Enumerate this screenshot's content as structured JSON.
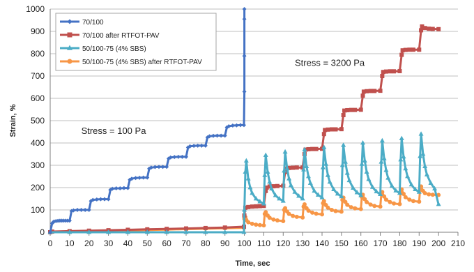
{
  "chart_data": {
    "type": "line",
    "xlabel": "Time, sec",
    "ylabel": "Strain, %",
    "xlim": [
      0,
      210
    ],
    "ylim": [
      0,
      1000
    ],
    "xticks": [
      0,
      10,
      20,
      30,
      40,
      50,
      60,
      70,
      80,
      90,
      100,
      110,
      120,
      130,
      140,
      150,
      160,
      170,
      180,
      190,
      200,
      210
    ],
    "yticks": [
      0,
      100,
      200,
      300,
      400,
      500,
      600,
      700,
      800,
      900,
      1000
    ],
    "grid": "horizontal",
    "legend_position": "top-left",
    "annotations": [
      {
        "text": "Stress = 100 Pa",
        "x": 16,
        "y": 440
      },
      {
        "text": "Stress = 3200 Pa",
        "x": 126,
        "y": 745
      }
    ],
    "series": [
      {
        "name": "70/100",
        "color": "#4472c4",
        "marker": "diamond",
        "points": [
          [
            0,
            0
          ],
          [
            1,
            40
          ],
          [
            1.5,
            45
          ],
          [
            2,
            48
          ],
          [
            3,
            50
          ],
          [
            4,
            51
          ],
          [
            5,
            52
          ],
          [
            6,
            52
          ],
          [
            7,
            52
          ],
          [
            8,
            52
          ],
          [
            9,
            52
          ],
          [
            10,
            52
          ],
          [
            11,
            95
          ],
          [
            12,
            98
          ],
          [
            14,
            100
          ],
          [
            16,
            100
          ],
          [
            18,
            100
          ],
          [
            20,
            100
          ],
          [
            21,
            140
          ],
          [
            22,
            145
          ],
          [
            24,
            147
          ],
          [
            26,
            148
          ],
          [
            28,
            148
          ],
          [
            30,
            148
          ],
          [
            31,
            190
          ],
          [
            32,
            195
          ],
          [
            34,
            197
          ],
          [
            36,
            197
          ],
          [
            38,
            198
          ],
          [
            40,
            198
          ],
          [
            41,
            235
          ],
          [
            42,
            240
          ],
          [
            44,
            243
          ],
          [
            46,
            244
          ],
          [
            48,
            245
          ],
          [
            50,
            245
          ],
          [
            51,
            285
          ],
          [
            52,
            290
          ],
          [
            54,
            292
          ],
          [
            56,
            293
          ],
          [
            58,
            293
          ],
          [
            60,
            293
          ],
          [
            61,
            330
          ],
          [
            62,
            335
          ],
          [
            64,
            337
          ],
          [
            66,
            338
          ],
          [
            68,
            338
          ],
          [
            70,
            338
          ],
          [
            71,
            380
          ],
          [
            72,
            385
          ],
          [
            74,
            387
          ],
          [
            76,
            388
          ],
          [
            78,
            388
          ],
          [
            80,
            388
          ],
          [
            81,
            425
          ],
          [
            82,
            430
          ],
          [
            84,
            432
          ],
          [
            86,
            433
          ],
          [
            88,
            433
          ],
          [
            90,
            433
          ],
          [
            91,
            470
          ],
          [
            92,
            475
          ],
          [
            94,
            478
          ],
          [
            96,
            479
          ],
          [
            98,
            480
          ],
          [
            99.8,
            480
          ],
          [
            100,
            630
          ],
          [
            100,
            790
          ],
          [
            100,
            955
          ],
          [
            100,
            1000
          ]
        ]
      },
      {
        "name": "70/100 after RTFOT-PAV",
        "color": "#c0504d",
        "marker": "square",
        "points": [
          [
            0,
            0
          ],
          [
            1,
            3
          ],
          [
            10,
            5
          ],
          [
            20,
            7
          ],
          [
            30,
            9
          ],
          [
            40,
            11
          ],
          [
            50,
            13
          ],
          [
            60,
            15
          ],
          [
            70,
            17
          ],
          [
            80,
            19
          ],
          [
            90,
            21
          ],
          [
            99.8,
            25
          ],
          [
            100,
            75
          ],
          [
            100.5,
            110
          ],
          [
            102,
            113
          ],
          [
            104,
            115
          ],
          [
            106,
            116
          ],
          [
            108,
            117
          ],
          [
            110,
            118
          ],
          [
            111,
            185
          ],
          [
            111.5,
            200
          ],
          [
            113,
            205
          ],
          [
            115,
            206
          ],
          [
            117,
            207
          ],
          [
            120,
            208
          ],
          [
            121,
            270
          ],
          [
            121.5,
            285
          ],
          [
            123,
            288
          ],
          [
            125,
            289
          ],
          [
            127,
            290
          ],
          [
            130,
            290
          ],
          [
            131,
            350
          ],
          [
            131.5,
            370
          ],
          [
            133,
            372
          ],
          [
            135,
            373
          ],
          [
            137,
            373
          ],
          [
            140,
            374
          ],
          [
            141,
            440
          ],
          [
            141.5,
            458
          ],
          [
            143,
            460
          ],
          [
            145,
            461
          ],
          [
            147,
            461
          ],
          [
            150,
            462
          ],
          [
            151,
            525
          ],
          [
            151.5,
            545
          ],
          [
            153,
            547
          ],
          [
            155,
            548
          ],
          [
            157,
            548
          ],
          [
            160,
            549
          ],
          [
            161,
            612
          ],
          [
            161.5,
            630
          ],
          [
            163,
            632
          ],
          [
            165,
            633
          ],
          [
            167,
            633
          ],
          [
            170,
            634
          ],
          [
            171,
            700
          ],
          [
            171.5,
            718
          ],
          [
            173,
            720
          ],
          [
            175,
            721
          ],
          [
            177,
            721
          ],
          [
            180,
            722
          ],
          [
            181,
            795
          ],
          [
            181.5,
            815
          ],
          [
            183,
            817
          ],
          [
            185,
            818
          ],
          [
            187,
            818
          ],
          [
            190,
            818
          ],
          [
            191,
            905
          ],
          [
            191.5,
            922
          ],
          [
            193,
            915
          ],
          [
            195,
            912
          ],
          [
            197,
            911
          ],
          [
            200,
            910
          ]
        ]
      },
      {
        "name": "50/100-75 (4% SBS)",
        "color": "#4bacc6",
        "marker": "triangle",
        "points": [
          [
            0,
            0
          ],
          [
            10,
            0
          ],
          [
            20,
            0
          ],
          [
            30,
            0
          ],
          [
            40,
            0
          ],
          [
            50,
            0
          ],
          [
            60,
            0
          ],
          [
            70,
            0
          ],
          [
            80,
            0
          ],
          [
            90,
            0
          ],
          [
            99.8,
            0
          ],
          [
            100,
            100
          ],
          [
            100.5,
            270
          ],
          [
            101,
            320
          ],
          [
            102,
            240
          ],
          [
            103,
            200
          ],
          [
            104,
            175
          ],
          [
            106,
            150
          ],
          [
            108,
            137
          ],
          [
            110,
            128
          ],
          [
            110.5,
            255
          ],
          [
            111,
            345
          ],
          [
            112,
            270
          ],
          [
            113,
            225
          ],
          [
            114,
            195
          ],
          [
            116,
            165
          ],
          [
            118,
            150
          ],
          [
            120,
            140
          ],
          [
            120.5,
            275
          ],
          [
            121,
            360
          ],
          [
            122,
            285
          ],
          [
            123,
            240
          ],
          [
            124,
            210
          ],
          [
            126,
            180
          ],
          [
            128,
            162
          ],
          [
            130,
            150
          ],
          [
            130.5,
            280
          ],
          [
            131,
            370
          ],
          [
            132,
            295
          ],
          [
            133,
            250
          ],
          [
            134,
            220
          ],
          [
            136,
            185
          ],
          [
            138,
            167
          ],
          [
            140,
            155
          ],
          [
            140.5,
            290
          ],
          [
            141,
            380
          ],
          [
            142,
            305
          ],
          [
            143,
            255
          ],
          [
            144,
            225
          ],
          [
            146,
            192
          ],
          [
            148,
            172
          ],
          [
            150,
            160
          ],
          [
            150.5,
            300
          ],
          [
            151,
            390
          ],
          [
            152,
            315
          ],
          [
            153,
            265
          ],
          [
            154,
            232
          ],
          [
            156,
            198
          ],
          [
            158,
            178
          ],
          [
            160,
            165
          ],
          [
            160.5,
            305
          ],
          [
            161,
            400
          ],
          [
            162,
            320
          ],
          [
            163,
            270
          ],
          [
            164,
            237
          ],
          [
            166,
            202
          ],
          [
            168,
            182
          ],
          [
            170,
            170
          ],
          [
            170.5,
            315
          ],
          [
            171,
            410
          ],
          [
            172,
            330
          ],
          [
            173,
            278
          ],
          [
            174,
            243
          ],
          [
            176,
            207
          ],
          [
            178,
            186
          ],
          [
            180,
            175
          ],
          [
            180.5,
            325
          ],
          [
            181,
            420
          ],
          [
            182,
            338
          ],
          [
            183,
            285
          ],
          [
            184,
            250
          ],
          [
            186,
            213
          ],
          [
            188,
            192
          ],
          [
            190,
            180
          ],
          [
            190.5,
            340
          ],
          [
            191,
            440
          ],
          [
            192,
            350
          ],
          [
            193,
            295
          ],
          [
            194,
            258
          ],
          [
            196,
            220
          ],
          [
            198,
            195
          ],
          [
            200,
            125
          ]
        ]
      },
      {
        "name": "50/100-75 (4% SBS) after RTFOT-PAV",
        "color": "#f79646",
        "marker": "circle",
        "points": [
          [
            0,
            0
          ],
          [
            10,
            2
          ],
          [
            20,
            4
          ],
          [
            30,
            6
          ],
          [
            40,
            8
          ],
          [
            50,
            10
          ],
          [
            60,
            12
          ],
          [
            70,
            14
          ],
          [
            80,
            16
          ],
          [
            90,
            18
          ],
          [
            99.8,
            20
          ],
          [
            100,
            60
          ],
          [
            100.5,
            68
          ],
          [
            101,
            55
          ],
          [
            102,
            45
          ],
          [
            104,
            38
          ],
          [
            106,
            34
          ],
          [
            108,
            32
          ],
          [
            110,
            31
          ],
          [
            110.5,
            82
          ],
          [
            111,
            90
          ],
          [
            112,
            75
          ],
          [
            113,
            65
          ],
          [
            115,
            57
          ],
          [
            117,
            53
          ],
          [
            120,
            50
          ],
          [
            120.5,
            100
          ],
          [
            121,
            108
          ],
          [
            122,
            93
          ],
          [
            123,
            82
          ],
          [
            125,
            73
          ],
          [
            127,
            69
          ],
          [
            130,
            66
          ],
          [
            130.5,
            115
          ],
          [
            131,
            125
          ],
          [
            132,
            108
          ],
          [
            133,
            97
          ],
          [
            135,
            88
          ],
          [
            137,
            83
          ],
          [
            140,
            80
          ],
          [
            140.5,
            130
          ],
          [
            141,
            140
          ],
          [
            142,
            122
          ],
          [
            143,
            110
          ],
          [
            145,
            100
          ],
          [
            147,
            95
          ],
          [
            150,
            92
          ],
          [
            150.5,
            145
          ],
          [
            151,
            155
          ],
          [
            152,
            136
          ],
          [
            153,
            123
          ],
          [
            155,
            112
          ],
          [
            157,
            107
          ],
          [
            160,
            104
          ],
          [
            160.5,
            158
          ],
          [
            161,
            168
          ],
          [
            162,
            148
          ],
          [
            163,
            135
          ],
          [
            165,
            124
          ],
          [
            167,
            118
          ],
          [
            170,
            115
          ],
          [
            170.5,
            170
          ],
          [
            171,
            180
          ],
          [
            172,
            160
          ],
          [
            173,
            146
          ],
          [
            175,
            135
          ],
          [
            177,
            129
          ],
          [
            180,
            126
          ],
          [
            180.5,
            182
          ],
          [
            181,
            192
          ],
          [
            182,
            172
          ],
          [
            183,
            157
          ],
          [
            185,
            146
          ],
          [
            187,
            140
          ],
          [
            190,
            137
          ],
          [
            190.5,
            195
          ],
          [
            191,
            205
          ],
          [
            192,
            185
          ],
          [
            193,
            175
          ],
          [
            195,
            170
          ],
          [
            197,
            168
          ],
          [
            200,
            167
          ]
        ]
      }
    ]
  }
}
